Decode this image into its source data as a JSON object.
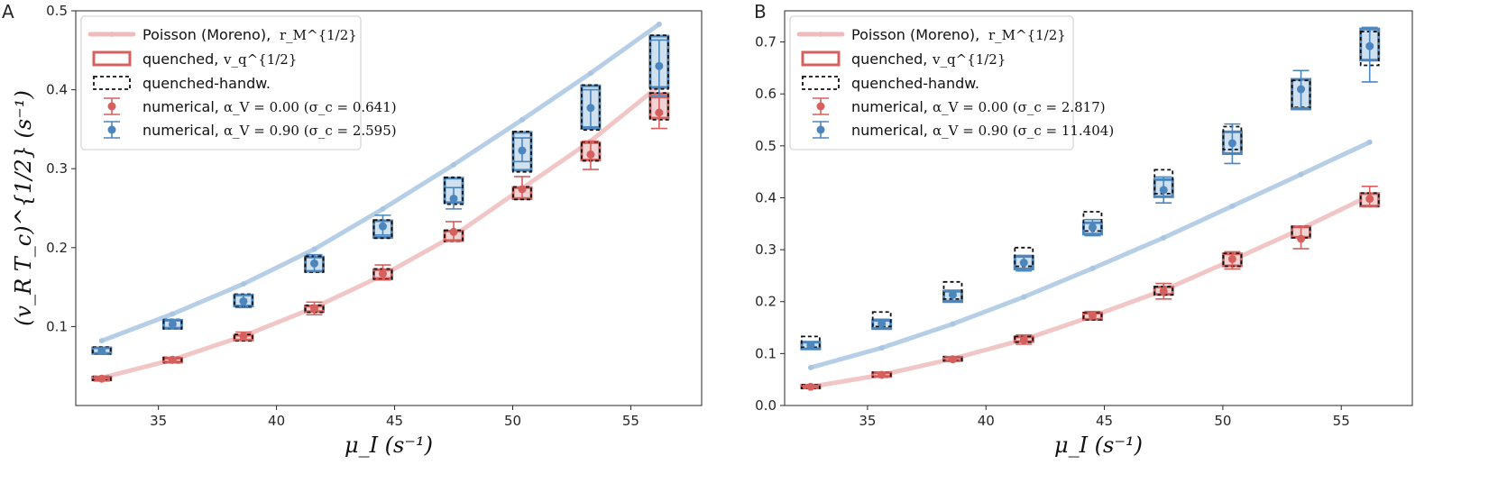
{
  "colors": {
    "poisson": "#a9c5e2",
    "poisson_red": "#eebcbc",
    "red": "#d6605e",
    "blue": "#4d86bd",
    "red_fill": "#f2d3d3",
    "blue_fill": "#cfe0ef",
    "hand": "#111111"
  },
  "chart_data": [
    {
      "panel": "A",
      "type": "scatter",
      "xlabel": "μ_I (s⁻¹)",
      "ylabel": "(v_R T_c)^{1/2} (s⁻¹)",
      "xlim": [
        31.5,
        58.0
      ],
      "ylim": [
        0.0,
        0.5
      ],
      "xticks": [
        35,
        40,
        45,
        50,
        55
      ],
      "yticks": [
        0.1,
        0.2,
        0.3,
        0.4,
        0.5
      ],
      "x": [
        32.6,
        35.6,
        38.6,
        41.6,
        44.5,
        47.5,
        50.4,
        53.3,
        56.2
      ],
      "legend": {
        "poisson_label": "Poisson (Moreno),",
        "poisson_math": "r_M^{1/2}",
        "quenched_label": "quenched,",
        "quenched_math": "v_q^{1/2}",
        "handw_label": "quenched-handw.",
        "num0_label": "numerical,",
        "num0_math": "α_V = 0.00 (σ_c = 0.641)",
        "num1_label": "numerical,",
        "num1_math": "α_V = 0.90 (σ_c = 2.595)"
      },
      "series": [
        {
          "name": "poisson_red",
          "values": [
            0.035,
            0.058,
            0.088,
            0.124,
            0.165,
            0.215,
            0.275,
            0.335,
            0.405
          ]
        },
        {
          "name": "poisson_blue",
          "values": [
            0.082,
            0.116,
            0.154,
            0.198,
            0.249,
            0.305,
            0.362,
            0.421,
            0.483
          ]
        },
        {
          "name": "quenched_red_box",
          "low": [
            0.033,
            0.055,
            0.083,
            0.119,
            0.161,
            0.209,
            0.262,
            0.311,
            0.364
          ],
          "high": [
            0.036,
            0.06,
            0.089,
            0.126,
            0.172,
            0.221,
            0.276,
            0.333,
            0.395
          ]
        },
        {
          "name": "handw_red_box",
          "low": [
            0.032,
            0.054,
            0.082,
            0.118,
            0.16,
            0.208,
            0.261,
            0.31,
            0.362
          ],
          "high": [
            0.037,
            0.061,
            0.09,
            0.127,
            0.173,
            0.222,
            0.277,
            0.334,
            0.396
          ]
        },
        {
          "name": "quenched_blue_box",
          "low": [
            0.066,
            0.098,
            0.126,
            0.17,
            0.213,
            0.257,
            0.298,
            0.351,
            0.403
          ],
          "high": [
            0.073,
            0.108,
            0.14,
            0.188,
            0.234,
            0.288,
            0.346,
            0.405,
            0.468
          ]
        },
        {
          "name": "handw_blue_box",
          "low": [
            0.065,
            0.097,
            0.125,
            0.169,
            0.212,
            0.255,
            0.296,
            0.349,
            0.401
          ],
          "high": [
            0.074,
            0.109,
            0.141,
            0.189,
            0.235,
            0.289,
            0.347,
            0.406,
            0.469
          ]
        },
        {
          "name": "numerical_red",
          "values": [
            0.034,
            0.058,
            0.088,
            0.123,
            0.167,
            0.22,
            0.274,
            0.318,
            0.371
          ],
          "err_low": [
            0.031,
            0.054,
            0.083,
            0.115,
            0.159,
            0.208,
            0.263,
            0.299,
            0.351
          ],
          "err_high": [
            0.037,
            0.061,
            0.093,
            0.131,
            0.178,
            0.233,
            0.29,
            0.335,
            0.39
          ]
        },
        {
          "name": "numerical_blue",
          "values": [
            0.069,
            0.103,
            0.132,
            0.18,
            0.227,
            0.262,
            0.323,
            0.377,
            0.43
          ],
          "err_low": [
            0.065,
            0.097,
            0.124,
            0.17,
            0.216,
            0.249,
            0.309,
            0.353,
            0.392
          ],
          "err_high": [
            0.073,
            0.109,
            0.14,
            0.191,
            0.241,
            0.276,
            0.339,
            0.4,
            0.463
          ]
        }
      ]
    },
    {
      "panel": "B",
      "type": "scatter",
      "xlabel": "μ_I (s⁻¹)",
      "ylabel": "",
      "xlim": [
        31.5,
        58.0
      ],
      "ylim": [
        0.0,
        0.76
      ],
      "xticks": [
        35,
        40,
        45,
        50,
        55
      ],
      "yticks": [
        0.0,
        0.1,
        0.2,
        0.3,
        0.4,
        0.5,
        0.6,
        0.7
      ],
      "x": [
        32.6,
        35.6,
        38.6,
        41.6,
        44.5,
        47.5,
        50.4,
        53.3,
        56.2
      ],
      "legend": {
        "poisson_label": "Poisson (Moreno),",
        "poisson_math": "r_M^{1/2}",
        "quenched_label": "quenched,",
        "quenched_math": "v_q^{1/2}",
        "handw_label": "quenched-handw.",
        "num0_label": "numerical,",
        "num0_math": "α_V = 0.00 (σ_c = 2.817)",
        "num1_label": "numerical,",
        "num1_math": "α_V = 0.90 (σ_c = 11.404)"
      },
      "series": [
        {
          "name": "poisson_red",
          "values": [
            0.036,
            0.059,
            0.09,
            0.127,
            0.172,
            0.222,
            0.28,
            0.34,
            0.404
          ]
        },
        {
          "name": "poisson_blue",
          "values": [
            0.073,
            0.111,
            0.157,
            0.209,
            0.264,
            0.323,
            0.384,
            0.445,
            0.507
          ]
        },
        {
          "name": "quenched_red_box",
          "low": [
            0.034,
            0.056,
            0.087,
            0.123,
            0.166,
            0.214,
            0.269,
            0.324,
            0.384
          ],
          "high": [
            0.039,
            0.063,
            0.093,
            0.132,
            0.178,
            0.228,
            0.292,
            0.344,
            0.408
          ]
        },
        {
          "name": "handw_red_box",
          "low": [
            0.033,
            0.055,
            0.086,
            0.122,
            0.165,
            0.213,
            0.268,
            0.323,
            0.383
          ],
          "high": [
            0.04,
            0.064,
            0.094,
            0.133,
            0.179,
            0.229,
            0.293,
            0.345,
            0.409
          ]
        },
        {
          "name": "quenched_blue_box",
          "low": [
            0.109,
            0.148,
            0.2,
            0.263,
            0.33,
            0.402,
            0.485,
            0.571,
            0.665
          ]
        },
        {
          "name": "quenched_blue_box_high",
          "values": [
            0.122,
            0.164,
            0.22,
            0.287,
            0.352,
            0.435,
            0.527,
            0.628,
            0.725
          ]
        },
        {
          "name": "handw_blue_box",
          "low": [
            0.112,
            0.152,
            0.205,
            0.268,
            0.336,
            0.408,
            0.493,
            0.574,
            0.655
          ],
          "high": [
            0.133,
            0.18,
            0.238,
            0.304,
            0.373,
            0.454,
            0.537,
            0.626,
            0.72
          ]
        },
        {
          "name": "numerical_red",
          "values": [
            0.036,
            0.059,
            0.089,
            0.126,
            0.173,
            0.22,
            0.282,
            0.321,
            0.398
          ],
          "err_low": [
            0.034,
            0.055,
            0.085,
            0.118,
            0.167,
            0.205,
            0.263,
            0.302,
            0.383
          ],
          "err_high": [
            0.039,
            0.064,
            0.094,
            0.136,
            0.181,
            0.235,
            0.296,
            0.345,
            0.422
          ]
        },
        {
          "name": "numerical_blue",
          "values": [
            0.116,
            0.158,
            0.213,
            0.275,
            0.343,
            0.415,
            0.505,
            0.609,
            0.692
          ],
          "err_low": [
            0.11,
            0.149,
            0.202,
            0.259,
            0.327,
            0.39,
            0.466,
            0.573,
            0.623
          ],
          "err_high": [
            0.122,
            0.166,
            0.222,
            0.289,
            0.358,
            0.44,
            0.542,
            0.645,
            0.728
          ]
        }
      ]
    }
  ],
  "labels": {
    "panel_a": "A",
    "panel_b": "B"
  }
}
